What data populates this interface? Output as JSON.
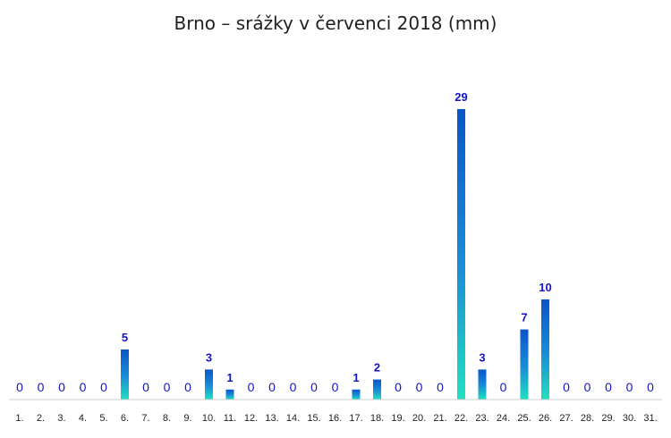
{
  "chart_data": {
    "type": "bar",
    "title": "Brno – srážky v červenci 2018 (mm)",
    "xlabel": "",
    "ylabel": "",
    "categories": [
      "1.",
      "2.",
      "3.",
      "4.",
      "5.",
      "6.",
      "7.",
      "8.",
      "9.",
      "10.",
      "11.",
      "12.",
      "13.",
      "14.",
      "15.",
      "16.",
      "17.",
      "18.",
      "19.",
      "20.",
      "21.",
      "22.",
      "23.",
      "24.",
      "25.",
      "26.",
      "27.",
      "28.",
      "29.",
      "30.",
      "31."
    ],
    "values": [
      0,
      0,
      0,
      0,
      0,
      5,
      0,
      0,
      0,
      3,
      1,
      0,
      0,
      0,
      0,
      0,
      1,
      2,
      0,
      0,
      0,
      29,
      3,
      0,
      7,
      10,
      0,
      0,
      0,
      0,
      0
    ],
    "ylim": [
      0,
      29
    ],
    "grid": false,
    "legend": "none",
    "colors": {
      "bar_top": "#0a55c8",
      "bar_bottom": "#21e0c0",
      "label": "#1414c8",
      "axis": "#cccccc"
    }
  }
}
